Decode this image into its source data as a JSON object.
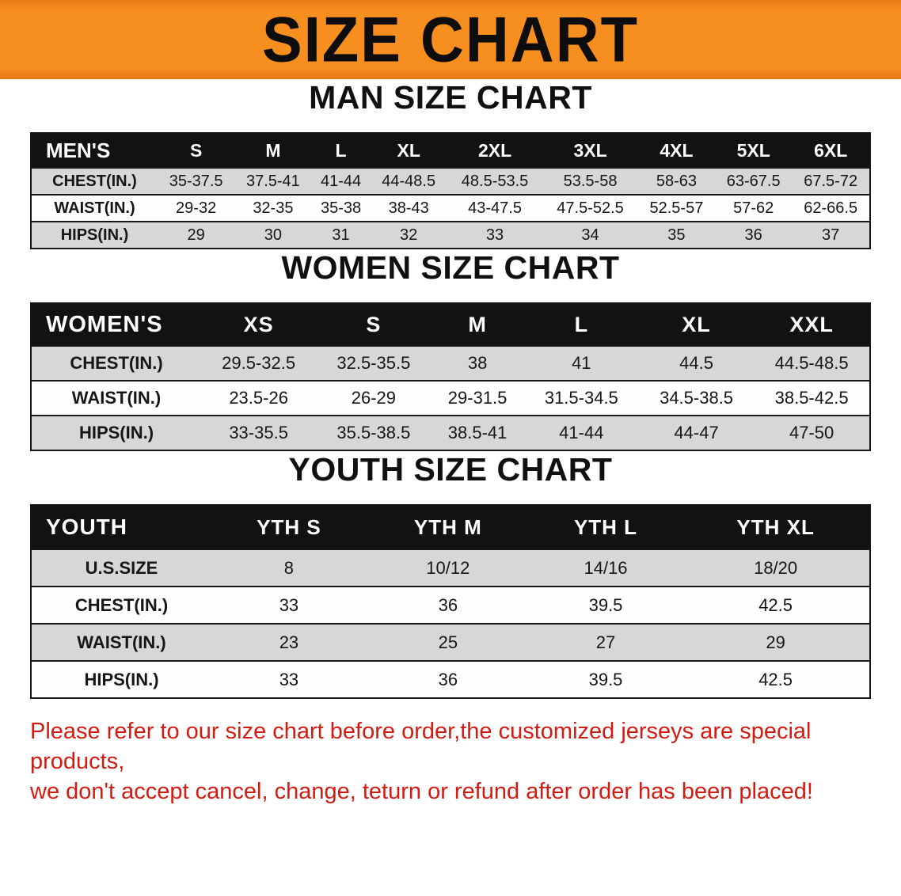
{
  "banner": {
    "title": "SIZE CHART",
    "bg_color": "#F28A1E",
    "text_color": "#111111"
  },
  "chart_data": [
    {
      "type": "table",
      "title": "MAN SIZE CHART",
      "columns": [
        "MEN'S",
        "S",
        "M",
        "L",
        "XL",
        "2XL",
        "3XL",
        "4XL",
        "5XL",
        "6XL"
      ],
      "rows": [
        [
          "CHEST(IN.)",
          "35-37.5",
          "37.5-41",
          "41-44",
          "44-48.5",
          "48.5-53.5",
          "53.5-58",
          "58-63",
          "63-67.5",
          "67.5-72"
        ],
        [
          "WAIST(IN.)",
          "29-32",
          "32-35",
          "35-38",
          "38-43",
          "43-47.5",
          "47.5-52.5",
          "52.5-57",
          "57-62",
          "62-66.5"
        ],
        [
          "HIPS(IN.)",
          "29",
          "30",
          "31",
          "32",
          "33",
          "34",
          "35",
          "36",
          "37"
        ]
      ]
    },
    {
      "type": "table",
      "title": "WOMEN SIZE CHART",
      "columns": [
        "WOMEN'S",
        "XS",
        "S",
        "M",
        "L",
        "XL",
        "XXL"
      ],
      "rows": [
        [
          "CHEST(IN.)",
          "29.5-32.5",
          "32.5-35.5",
          "38",
          "41",
          "44.5",
          "44.5-48.5"
        ],
        [
          "WAIST(IN.)",
          "23.5-26",
          "26-29",
          "29-31.5",
          "31.5-34.5",
          "34.5-38.5",
          "38.5-42.5"
        ],
        [
          "HIPS(IN.)",
          "33-35.5",
          "35.5-38.5",
          "38.5-41",
          "41-44",
          "44-47",
          "47-50"
        ]
      ]
    },
    {
      "type": "table",
      "title": "YOUTH SIZE CHART",
      "columns": [
        "YOUTH",
        "YTH S",
        "YTH M",
        "YTH L",
        "YTH XL"
      ],
      "rows": [
        [
          "U.S.SIZE",
          "8",
          "10/12",
          "14/16",
          "18/20"
        ],
        [
          "CHEST(IN.)",
          "33",
          "36",
          "39.5",
          "42.5"
        ],
        [
          "WAIST(IN.)",
          "23",
          "25",
          "27",
          "29"
        ],
        [
          "HIPS(IN.)",
          "33",
          "36",
          "39.5",
          "42.5"
        ]
      ]
    }
  ],
  "disclaimer": {
    "line1": "Please refer to our size chart before order,the customized jerseys are special products,",
    "line2": "we don't accept cancel, change, teturn or refund after order has been placed!",
    "text_color": "#D31B12"
  },
  "colors": {
    "banner_orange": "#F28A1E",
    "table_header_bg": "#121212",
    "row_stripe_gray": "#D7D7D7",
    "row_white": "#FEFEFE",
    "border_black": "#161616"
  }
}
